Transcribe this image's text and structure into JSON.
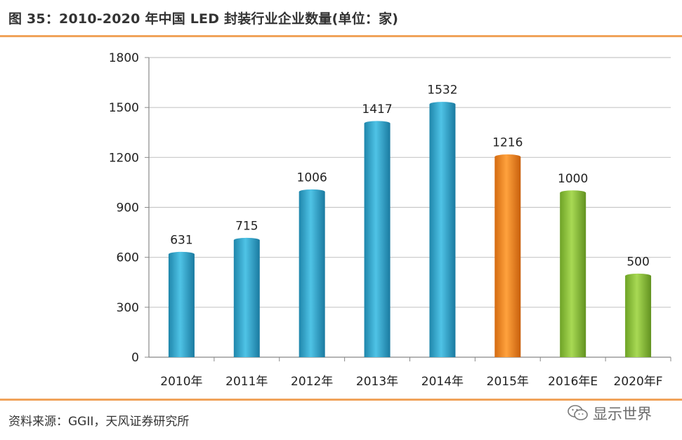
{
  "header": {
    "title": "图 35：2010-2020 年中国 LED 封装行业企业数量(单位：家)"
  },
  "footer": {
    "source": "资料来源：GGII，天风证券研究所",
    "watermark": "显示世界",
    "watermark_icon": "wechat-icon"
  },
  "colors": {
    "accent_rule": "#f0a35a",
    "grid": "#c8c8c8"
  },
  "chart_data": {
    "type": "bar",
    "categories": [
      "2010年",
      "2011年",
      "2012年",
      "2013年",
      "2014年",
      "2015年",
      "2016年E",
      "2020年F"
    ],
    "values": [
      631,
      715,
      1006,
      1417,
      1532,
      1216,
      1000,
      500
    ],
    "bar_colors": [
      "#3aaed0",
      "#3aaed0",
      "#3aaed0",
      "#3aaed0",
      "#3aaed0",
      "#f08a24",
      "#8cc23c",
      "#8cc23c"
    ],
    "ylim": [
      0,
      1800
    ],
    "yticks": [
      0,
      300,
      600,
      900,
      1200,
      1500,
      1800
    ],
    "grid": true,
    "legend": "none",
    "data_labels": true
  }
}
